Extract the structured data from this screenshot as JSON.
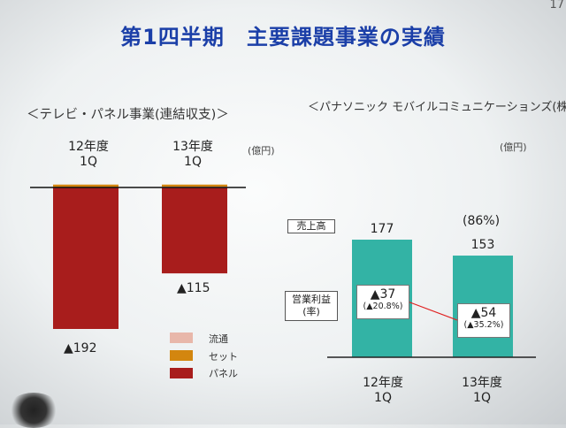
{
  "title": "第1四半期　主要課題事業の実績",
  "page_number": "17",
  "colors": {
    "title": "#1b3fa8",
    "panel": "#a81d1c",
    "set": "#d3860f",
    "distribution": "#e8b7aa",
    "mobile_bar": "#33b3a5",
    "profit_line": "#e02020"
  },
  "chart_data": [
    {
      "type": "bar",
      "title": "＜テレビ・パネル事業(連結収支)＞",
      "unit": "(億円)",
      "categories": [
        "12年度\n1Q",
        "13年度\n1Q"
      ],
      "category_labels": [
        {
          "line1": "12年度",
          "line2": "1Q"
        },
        {
          "line1": "13年度",
          "line2": "1Q"
        }
      ],
      "value_labels": [
        "▲192",
        "▲115"
      ],
      "totals": [
        -192,
        -115
      ],
      "series": [
        {
          "name": "流通",
          "values": [
            0,
            1
          ]
        },
        {
          "name": "セット",
          "values": [
            4,
            3
          ]
        },
        {
          "name": "パネル",
          "values": [
            -196,
            -119
          ]
        }
      ],
      "legend": [
        {
          "name": "流通",
          "color": "#e8b7aa"
        },
        {
          "name": "セット",
          "color": "#d3860f"
        },
        {
          "name": "パネル",
          "color": "#a81d1c"
        }
      ],
      "legend_position": "bottom-right",
      "stacked": true,
      "grid": false
    },
    {
      "type": "bar",
      "title": "＜パナソニック モバイルコミュニケーションズ(株)＞",
      "unit": "(億円)",
      "categories": [
        "12年度\n1Q",
        "13年度\n1Q"
      ],
      "category_labels": [
        {
          "line1": "12年度",
          "line2": "1Q"
        },
        {
          "line1": "13年度",
          "line2": "1Q"
        }
      ],
      "row_labels": {
        "sales": "売上高",
        "profit": "営業利益\n(率)",
        "profit_line1": "営業利益",
        "profit_line2": "(率)"
      },
      "series": [
        {
          "name": "売上高",
          "values": [
            177,
            153
          ],
          "labels": [
            "177",
            "153"
          ]
        },
        {
          "name": "営業利益",
          "values": [
            -37,
            -54
          ],
          "labels": [
            "▲37",
            "▲54"
          ],
          "rates": [
            "(▲20.8%)",
            "(▲35.2%)"
          ]
        }
      ],
      "yoy": "(86%)",
      "grid": false
    }
  ]
}
